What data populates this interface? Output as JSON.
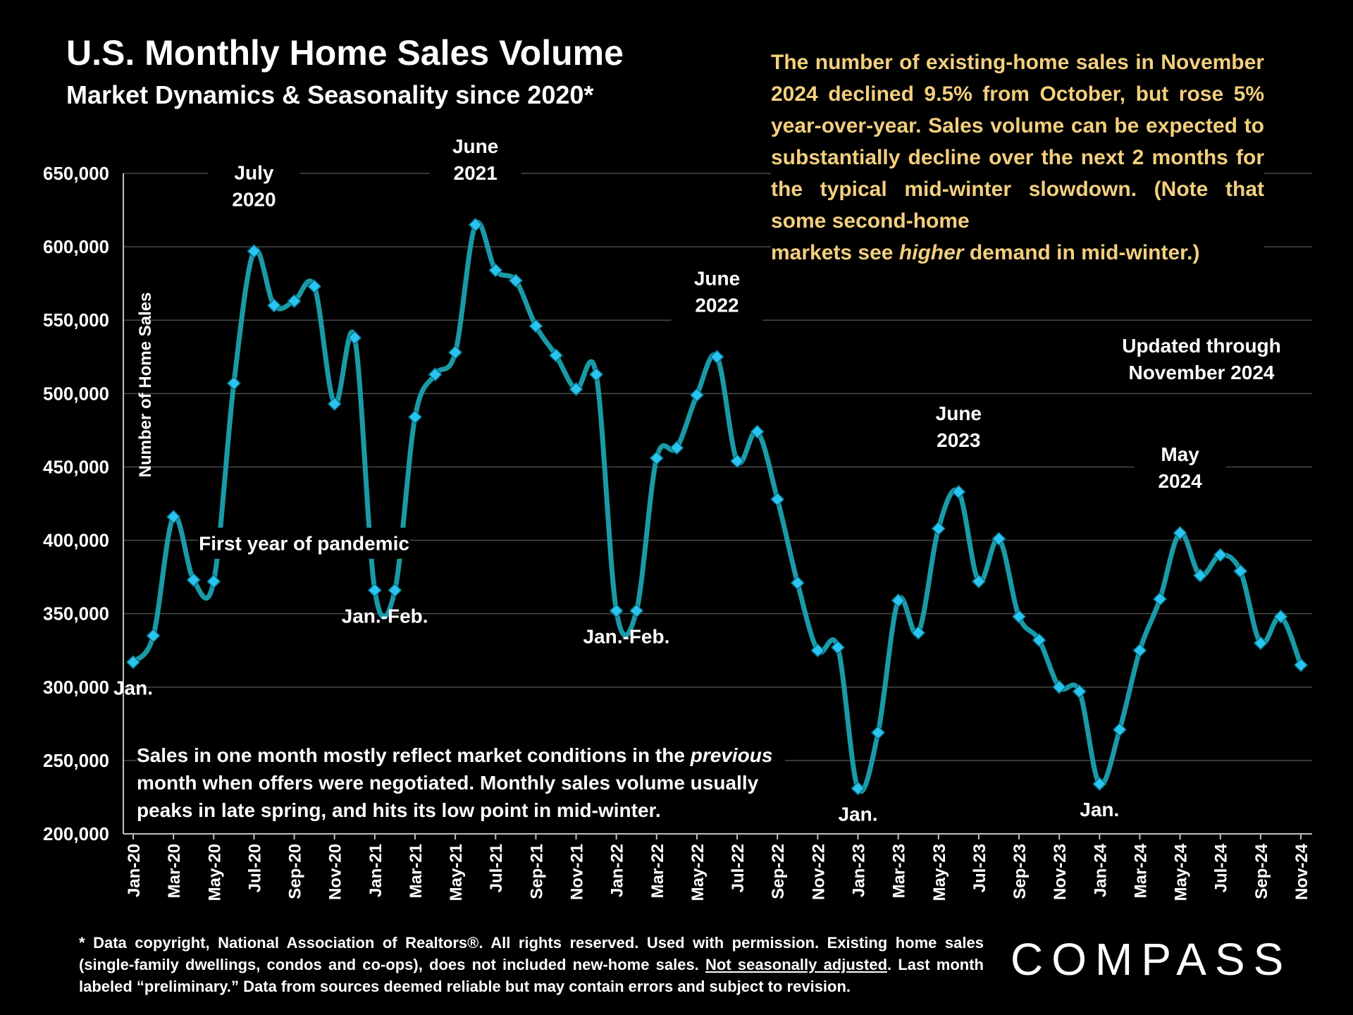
{
  "header": {
    "title": "U.S. Monthly Home Sales Volume",
    "subtitle": "Market Dynamics & Seasonality since 2020*"
  },
  "commentary": {
    "part1": "The number of existing-home sales in November 2024 declined 9.5% from October, but rose 5% year-over-year. Sales volume can be expected to substantially decline over the next 2 months for the typical mid-winter slowdown. (Note that some second-home",
    "part2": "markets see ",
    "emphasis": "higher",
    "part3": " demand in mid-winter.)"
  },
  "updated_note": {
    "line1": "Updated through",
    "line2": "November 2024"
  },
  "bottom_note": {
    "part1": "Sales in one month mostly reflect market conditions in the ",
    "emphasis": "previous",
    "part2": " month when offers were negotiated. Monthly sales volume usually peaks in late spring, and hits its low point in mid-winter."
  },
  "footnote": {
    "part1": "* Data copyright, National Association of Realtors®. All rights reserved. Used with permission. Existing home sales (single-family dwellings, condos and co-ops), does not included new-home sales. ",
    "underlined": "Not seasonally adjusted",
    "part2": ". Last month labeled “preliminary.” Data from sources deemed reliable but may contain errors and subject to revision."
  },
  "logo": {
    "text": "COMPASS"
  },
  "colors": {
    "background": "#000000",
    "line": "#1a9aa6",
    "marker": "#29c5f0",
    "commentary_text": "#f3cf7e",
    "text": "#ffffff",
    "grid": "#4a4a4a"
  },
  "chart_data": {
    "type": "line",
    "ylabel": "Number of Home Sales",
    "ylim": [
      200000,
      650000
    ],
    "y_ticks": [
      200000,
      250000,
      300000,
      350000,
      400000,
      450000,
      500000,
      550000,
      600000,
      650000
    ],
    "y_tick_labels": [
      "200,000",
      "250,000",
      "300,000",
      "350,000",
      "400,000",
      "450,000",
      "500,000",
      "550,000",
      "600,000",
      "650,000"
    ],
    "grid": "horizontal",
    "months": [
      "Jan-20",
      "Feb-20",
      "Mar-20",
      "Apr-20",
      "May-20",
      "Jun-20",
      "Jul-20",
      "Aug-20",
      "Sep-20",
      "Oct-20",
      "Nov-20",
      "Dec-20",
      "Jan-21",
      "Feb-21",
      "Mar-21",
      "Apr-21",
      "May-21",
      "Jun-21",
      "Jul-21",
      "Aug-21",
      "Sep-21",
      "Oct-21",
      "Nov-21",
      "Dec-21",
      "Jan-22",
      "Feb-22",
      "Mar-22",
      "Apr-22",
      "May-22",
      "Jun-22",
      "Jul-22",
      "Aug-22",
      "Sep-22",
      "Oct-22",
      "Nov-22",
      "Dec-22",
      "Jan-23",
      "Feb-23",
      "Mar-23",
      "Apr-23",
      "May-23",
      "Jun-23",
      "Jul-23",
      "Aug-23",
      "Sep-23",
      "Oct-23",
      "Nov-23",
      "Dec-23",
      "Jan-24",
      "Feb-24",
      "Mar-24",
      "Apr-24",
      "May-24",
      "Jun-24",
      "Jul-24",
      "Aug-24",
      "Sep-24",
      "Oct-24",
      "Nov-24"
    ],
    "x_tick_labels": [
      "Jan-20",
      "Mar-20",
      "May-20",
      "Jul-20",
      "Sep-20",
      "Nov-20",
      "Jan-21",
      "Mar-21",
      "May-21",
      "Jul-21",
      "Sep-21",
      "Nov-21",
      "Jan-22",
      "Mar-22",
      "May-22",
      "Jul-22",
      "Sep-22",
      "Nov-22",
      "Jan-23",
      "Mar-23",
      "May-23",
      "Jul-23",
      "Sep-23",
      "Nov-23",
      "Jan-24",
      "Mar-24",
      "May-24",
      "Jul-24",
      "Sep-24",
      "Nov-24"
    ],
    "series": [
      {
        "values": [
          317000,
          335000,
          416000,
          373000,
          372000,
          507000,
          597000,
          560000,
          563000,
          573000,
          493000,
          538000,
          366000,
          366000,
          484000,
          513000,
          528000,
          615000,
          584000,
          577000,
          546000,
          526000,
          503000,
          513000,
          352000,
          352000,
          456000,
          463000,
          499000,
          525000,
          454000,
          474000,
          428000,
          371000,
          325000,
          327000,
          231000,
          269000,
          359000,
          337000,
          408000,
          433000,
          372000,
          401000,
          348000,
          332000,
          300000,
          297000,
          234000,
          271000,
          325000,
          360000,
          405000,
          376000,
          390000,
          379000,
          330000,
          348000,
          315000
        ]
      }
    ],
    "annotations": [
      {
        "text": "Jan.",
        "month_index": 0,
        "placement": "below"
      },
      {
        "text": "First year of pandemic",
        "month_index": 8,
        "placement": "label"
      },
      {
        "lines": [
          "July",
          "2020"
        ],
        "month_index": 6,
        "placement": "above"
      },
      {
        "lines": [
          "June",
          "2021"
        ],
        "month_index": 17,
        "placement": "above"
      },
      {
        "text": "Jan.-Feb.",
        "month_index": 12.5,
        "placement": "below"
      },
      {
        "text": "Jan.-Feb.",
        "month_index": 24.5,
        "placement": "below"
      },
      {
        "lines": [
          "June",
          "2022"
        ],
        "month_index": 29,
        "placement": "above"
      },
      {
        "lines": [
          "June",
          "2023"
        ],
        "month_index": 41,
        "placement": "above"
      },
      {
        "text": "Jan.",
        "month_index": 36,
        "placement": "below"
      },
      {
        "lines": [
          "May",
          "2024"
        ],
        "month_index": 52,
        "placement": "above"
      },
      {
        "text": "Jan.",
        "month_index": 48,
        "placement": "below"
      }
    ]
  }
}
